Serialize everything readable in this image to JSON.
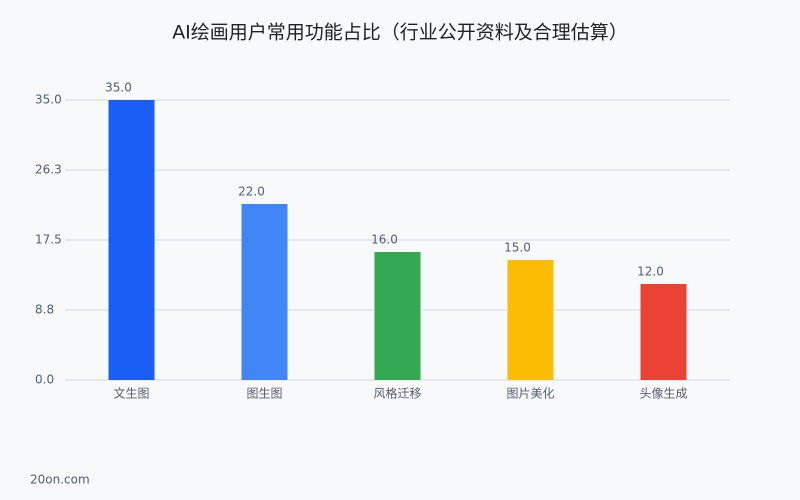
{
  "chart_data": {
    "type": "bar",
    "title": "AI绘画用户常用功能占比（行业公开资料及合理估算）",
    "categories": [
      "文生图",
      "图生图",
      "风格迁移",
      "图片美化",
      "头像生成"
    ],
    "values": [
      35,
      22,
      16,
      15,
      12
    ],
    "value_labels": [
      "35.0",
      "22.0",
      "16.0",
      "15.0",
      "12.0"
    ],
    "colors": [
      "#1a5ef5",
      "#4285f4",
      "#34a853",
      "#fbbc04",
      "#ea4335"
    ],
    "ylim": [
      0,
      35
    ],
    "yticks": [
      {
        "value": 0,
        "label": "0.0"
      },
      {
        "value": 8.75,
        "label": "8.8"
      },
      17.5,
      {
        "value": 26.25,
        "label": "26.3"
      },
      {
        "value": 35,
        "label": "35.0"
      }
    ],
    "grid": true,
    "source": "20on.com"
  }
}
